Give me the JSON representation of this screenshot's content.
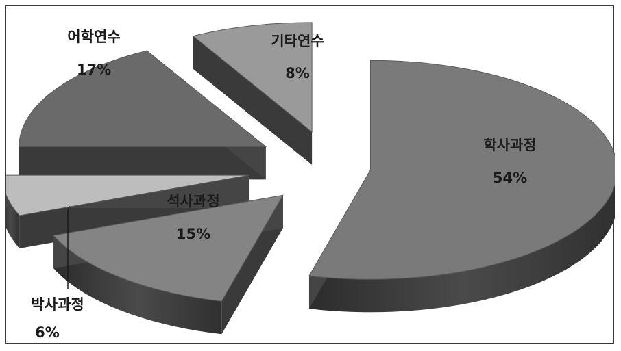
{
  "chart_data": {
    "type": "pie",
    "style": "3d-exploded",
    "title": "",
    "slices": [
      {
        "label": "학사과정",
        "value": 54,
        "value_label": "54%",
        "color": "#7a7a7a"
      },
      {
        "label": "석사과정",
        "value": 15,
        "value_label": "15%",
        "color": "#848484"
      },
      {
        "label": "박사과정",
        "value": 6,
        "value_label": "6%",
        "color": "#bdbdbd"
      },
      {
        "label": "어학연수",
        "value": 17,
        "value_label": "17%",
        "color": "#6a6a6a"
      },
      {
        "label": "기타연수",
        "value": 8,
        "value_label": "8%",
        "color": "#9a9a9a"
      }
    ]
  }
}
